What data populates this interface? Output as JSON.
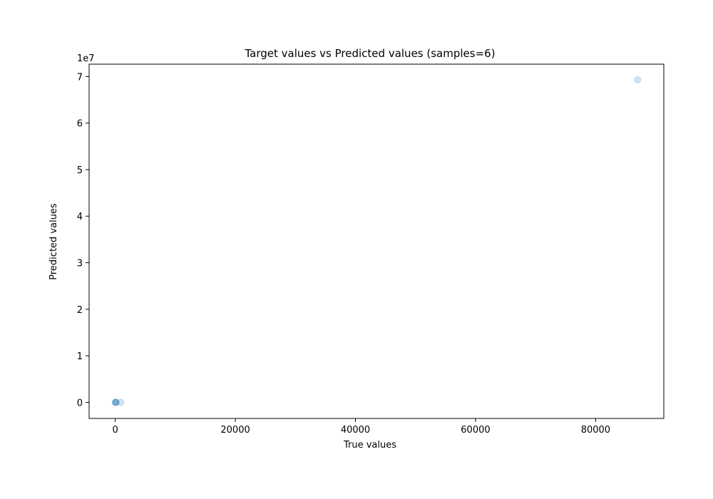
{
  "chart_data": {
    "type": "scatter",
    "title": "Target values vs Predicted values (samples=6)",
    "xlabel": "True values",
    "ylabel": "Predicted values",
    "y_offset_label": "1e7",
    "xlim": [
      -4350,
      91350
    ],
    "ylim": [
      -3460000,
      72660000
    ],
    "x_ticks": [
      0,
      20000,
      40000,
      60000,
      80000
    ],
    "x_tick_labels": [
      "0",
      "20000",
      "40000",
      "60000",
      "80000"
    ],
    "y_ticks": [
      0,
      10000000,
      20000000,
      30000000,
      40000000,
      50000000,
      60000000,
      70000000
    ],
    "y_tick_labels": [
      "0",
      "1",
      "2",
      "3",
      "4",
      "5",
      "6",
      "7"
    ],
    "grid": false,
    "marker_color": "#1f77b4",
    "marker_alpha": 0.2,
    "points": [
      {
        "x": 0,
        "y": 0
      },
      {
        "x": 50,
        "y": 0
      },
      {
        "x": 100,
        "y": 0
      },
      {
        "x": 150,
        "y": 0
      },
      {
        "x": 900,
        "y": 0
      },
      {
        "x": 87000,
        "y": 69300000
      }
    ]
  }
}
